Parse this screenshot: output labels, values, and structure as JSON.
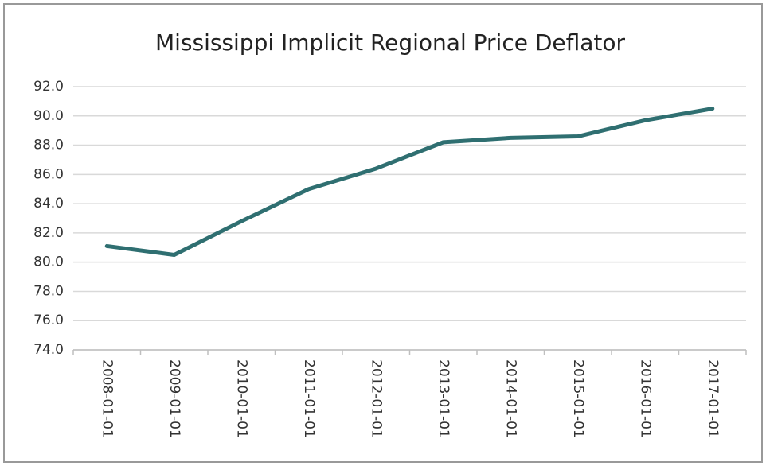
{
  "chart_data": {
    "type": "line",
    "title": "Mississippi Implicit Regional Price Deflator",
    "categories": [
      "2008-01-01",
      "2009-01-01",
      "2010-01-01",
      "2011-01-01",
      "2012-01-01",
      "2013-01-01",
      "2014-01-01",
      "2015-01-01",
      "2016-01-01",
      "2017-01-01"
    ],
    "values": [
      81.1,
      80.5,
      82.8,
      85.0,
      86.4,
      88.2,
      88.5,
      88.6,
      89.7,
      90.5
    ],
    "color": "#2f6f71",
    "ylim": [
      74,
      92
    ],
    "yticks": [
      {
        "value": 74,
        "label": "74.0"
      },
      {
        "value": 76,
        "label": "76.0"
      },
      {
        "value": 78,
        "label": "78.0"
      },
      {
        "value": 80,
        "label": "80.0"
      },
      {
        "value": 82,
        "label": "82.0"
      },
      {
        "value": 84,
        "label": "84.0"
      },
      {
        "value": 86,
        "label": "86.0"
      },
      {
        "value": 88,
        "label": "88.0"
      },
      {
        "value": 90,
        "label": "90.0"
      },
      {
        "value": 92,
        "label": "92.0"
      }
    ],
    "grid": true
  }
}
